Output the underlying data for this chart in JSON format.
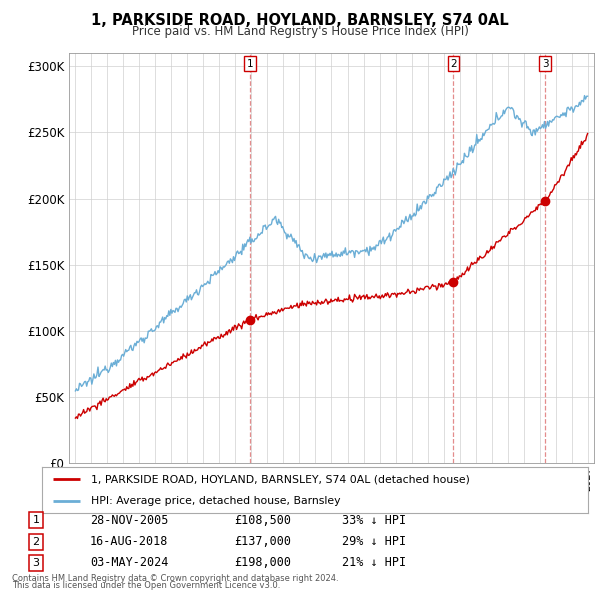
{
  "title": "1, PARKSIDE ROAD, HOYLAND, BARNSLEY, S74 0AL",
  "subtitle": "Price paid vs. HM Land Registry's House Price Index (HPI)",
  "ylim": [
    0,
    310000
  ],
  "yticks": [
    0,
    50000,
    100000,
    150000,
    200000,
    250000,
    300000
  ],
  "ytick_labels": [
    "£0",
    "£50K",
    "£100K",
    "£150K",
    "£200K",
    "£250K",
    "£300K"
  ],
  "hpi_color": "#6baed6",
  "price_color": "#cc0000",
  "vline_color": "#e08080",
  "sale_years": [
    2005.91,
    2018.62,
    2024.34
  ],
  "sale_prices": [
    108500,
    137000,
    198000
  ],
  "sale_labels": [
    "1",
    "2",
    "3"
  ],
  "legend_label_red": "1, PARKSIDE ROAD, HOYLAND, BARNSLEY, S74 0AL (detached house)",
  "legend_label_blue": "HPI: Average price, detached house, Barnsley",
  "table_data": [
    [
      "1",
      "28-NOV-2005",
      "£108,500",
      "33% ↓ HPI"
    ],
    [
      "2",
      "16-AUG-2018",
      "£137,000",
      "29% ↓ HPI"
    ],
    [
      "3",
      "03-MAY-2024",
      "£198,000",
      "21% ↓ HPI"
    ]
  ],
  "footnote1": "Contains HM Land Registry data © Crown copyright and database right 2024.",
  "footnote2": "This data is licensed under the Open Government Licence v3.0.",
  "background_color": "#ffffff",
  "grid_color": "#d0d0d0",
  "xlim_left": 1994.6,
  "xlim_right": 2027.4
}
